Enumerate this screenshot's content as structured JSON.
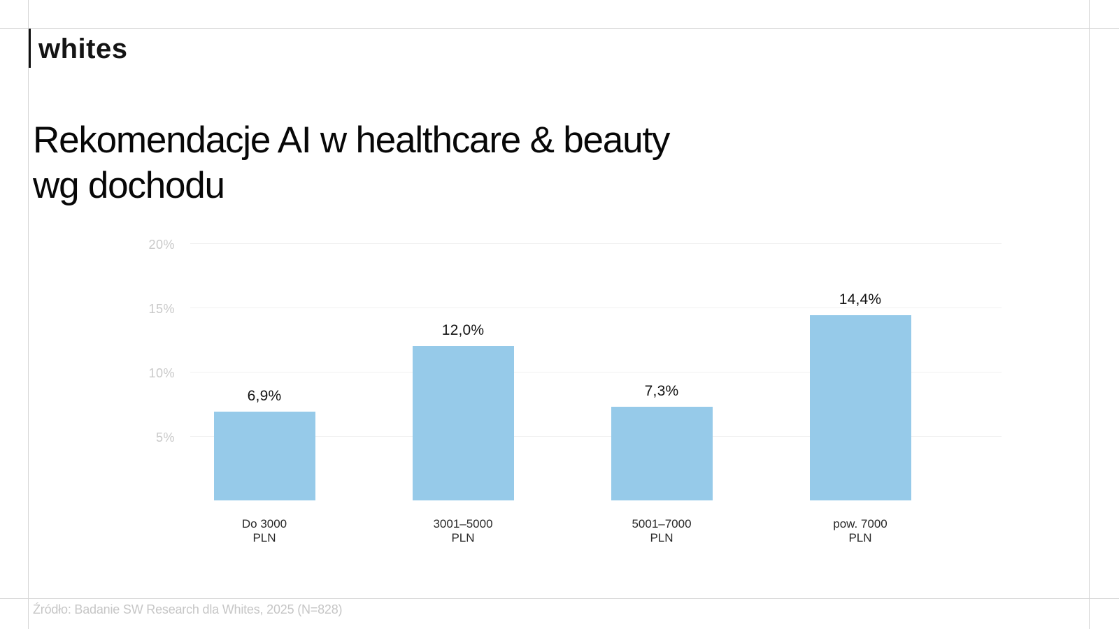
{
  "logo": {
    "text": "whites"
  },
  "title_lines": [
    "Rekomendacje AI w healthcare & beauty",
    "wg dochodu"
  ],
  "source": {
    "text": "Źródło: Badanie SW Research dla Whites, 2025 (N=828)"
  },
  "colors": {
    "bar": "#96cae9",
    "guide_line": "#d6d6d6",
    "gridline": "#f1f1f1",
    "tick_label": "#c9c9c9",
    "value_label": "#121212",
    "category_label": "#282828",
    "source_text": "#c6c6c6",
    "title_text": "#070707"
  },
  "chart_data": {
    "type": "bar",
    "title": "Rekomendacje AI w healthcare & beauty wg dochodu",
    "categories": [
      "Do 3000 PLN",
      "3001–5000 PLN",
      "5001–7000 PLN",
      "pow. 7000 PLN"
    ],
    "category_lines": [
      [
        "Do 3000",
        "PLN"
      ],
      [
        "3001–5000",
        "PLN"
      ],
      [
        "5001–7000",
        "PLN"
      ],
      [
        "pow. 7000",
        "PLN"
      ]
    ],
    "values": [
      6.9,
      12.0,
      7.3,
      14.4
    ],
    "value_labels": [
      "6,9%",
      "12,0%",
      "7,3%",
      "14,4%"
    ],
    "xlabel": "",
    "ylabel": "",
    "y_ticks": [
      5,
      10,
      15,
      20
    ],
    "y_tick_labels": [
      "5%",
      "10%",
      "15%",
      "20%"
    ],
    "ylim": [
      0,
      21.5
    ],
    "grid": true,
    "legend": false
  }
}
